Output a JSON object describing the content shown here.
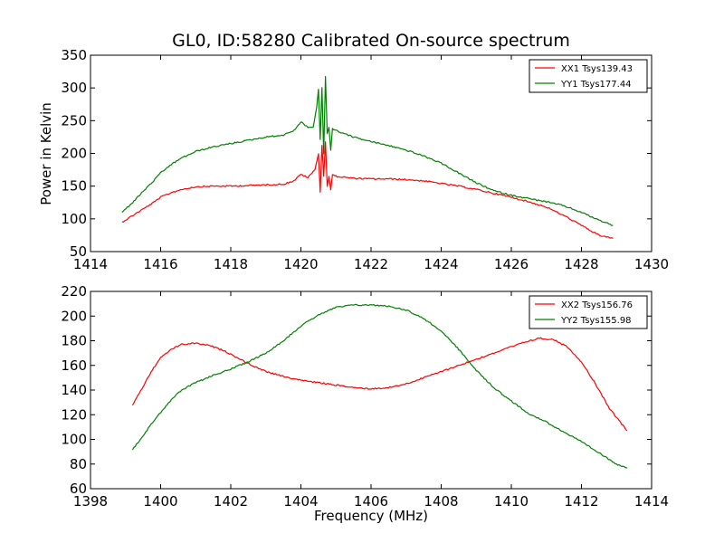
{
  "figure": {
    "title": "GL0, ID:58280 Calibrated On-source spectrum",
    "ylabel": "Power in Kelvin",
    "xlabel": "Frequency (MHz)"
  },
  "chart_data": [
    {
      "type": "line",
      "title": "GL0, ID:58280 Calibrated On-source spectrum",
      "ylabel": "Power in Kelvin",
      "xlim": [
        1414,
        1430
      ],
      "ylim": [
        50,
        350
      ],
      "xticks": [
        1414,
        1416,
        1418,
        1420,
        1422,
        1424,
        1426,
        1428,
        1430
      ],
      "yticks": [
        50,
        100,
        150,
        200,
        250,
        300,
        350
      ],
      "grid": false,
      "legend_position": "top-right",
      "series": [
        {
          "name": "XX1 Tsys139.43",
          "color": "#ff0000",
          "x": [
            1414.9,
            1415.2,
            1415.5,
            1415.8,
            1416.0,
            1416.3,
            1416.6,
            1417.0,
            1417.5,
            1418.0,
            1418.5,
            1419.0,
            1419.5,
            1419.8,
            1420.0,
            1420.2,
            1420.4,
            1420.5,
            1420.55,
            1420.6,
            1420.65,
            1420.7,
            1420.75,
            1420.8,
            1420.85,
            1420.9,
            1421.0,
            1421.5,
            1422.0,
            1422.5,
            1423.0,
            1423.5,
            1424.0,
            1424.5,
            1425.0,
            1425.5,
            1426.0,
            1426.5,
            1427.0,
            1427.5,
            1428.0,
            1428.5,
            1428.9
          ],
          "values": [
            95,
            105,
            115,
            125,
            133,
            140,
            145,
            149,
            150,
            150,
            151,
            152,
            153,
            158,
            168,
            163,
            175,
            200,
            140,
            213,
            165,
            218,
            150,
            165,
            145,
            167,
            165,
            162,
            161,
            161,
            160,
            158,
            154,
            150,
            145,
            139,
            133,
            126,
            118,
            105,
            90,
            75,
            70
          ]
        },
        {
          "name": "YY1 Tsys177.44",
          "color": "#008000",
          "x": [
            1414.9,
            1415.2,
            1415.5,
            1415.8,
            1416.0,
            1416.3,
            1416.6,
            1417.0,
            1417.5,
            1418.0,
            1418.5,
            1419.0,
            1419.5,
            1419.8,
            1420.0,
            1420.2,
            1420.35,
            1420.45,
            1420.5,
            1420.55,
            1420.6,
            1420.65,
            1420.7,
            1420.75,
            1420.8,
            1420.85,
            1420.9,
            1421.0,
            1421.5,
            1422.0,
            1422.5,
            1423.0,
            1423.5,
            1424.0,
            1424.5,
            1425.0,
            1425.5,
            1426.0,
            1426.5,
            1427.0,
            1427.5,
            1428.0,
            1428.5,
            1428.9
          ],
          "values": [
            110,
            125,
            142,
            158,
            170,
            183,
            193,
            203,
            210,
            215,
            220,
            225,
            228,
            235,
            248,
            240,
            240,
            270,
            298,
            220,
            300,
            200,
            318,
            230,
            240,
            205,
            238,
            235,
            225,
            218,
            212,
            205,
            196,
            185,
            170,
            155,
            143,
            136,
            131,
            126,
            120,
            110,
            98,
            90
          ]
        }
      ]
    },
    {
      "type": "line",
      "xlabel": "Frequency (MHz)",
      "xlim": [
        1398,
        1414
      ],
      "ylim": [
        60,
        220
      ],
      "xticks": [
        1398,
        1400,
        1402,
        1404,
        1406,
        1408,
        1410,
        1412,
        1414
      ],
      "yticks": [
        60,
        80,
        100,
        120,
        140,
        160,
        180,
        200,
        220
      ],
      "grid": false,
      "legend_position": "top-right",
      "series": [
        {
          "name": "XX2 Tsys156.76",
          "color": "#ff0000",
          "x": [
            1399.2,
            1399.5,
            1399.8,
            1400.0,
            1400.3,
            1400.6,
            1401.0,
            1401.4,
            1401.8,
            1402.2,
            1402.6,
            1403.0,
            1403.5,
            1404.0,
            1404.5,
            1405.0,
            1405.5,
            1406.0,
            1406.5,
            1407.0,
            1407.5,
            1408.0,
            1408.5,
            1409.0,
            1409.5,
            1410.0,
            1410.4,
            1410.8,
            1411.2,
            1411.6,
            1412.0,
            1412.4,
            1412.8,
            1413.3
          ],
          "values": [
            128,
            143,
            158,
            166,
            173,
            177,
            178,
            176,
            172,
            166,
            160,
            155,
            151,
            148,
            146,
            144,
            142,
            141,
            142,
            145,
            150,
            155,
            160,
            165,
            170,
            175,
            179,
            182,
            181,
            175,
            163,
            145,
            125,
            107
          ]
        },
        {
          "name": "YY2 Tsys155.98",
          "color": "#008000",
          "x": [
            1399.2,
            1399.5,
            1399.8,
            1400.0,
            1400.3,
            1400.6,
            1401.0,
            1401.5,
            1402.0,
            1402.5,
            1403.0,
            1403.5,
            1404.0,
            1404.5,
            1405.0,
            1405.5,
            1406.0,
            1406.5,
            1407.0,
            1407.5,
            1408.0,
            1408.5,
            1409.0,
            1409.5,
            1410.0,
            1410.5,
            1411.0,
            1411.5,
            1412.0,
            1412.5,
            1413.0,
            1413.3
          ],
          "values": [
            92,
            103,
            115,
            122,
            132,
            140,
            146,
            152,
            157,
            163,
            170,
            180,
            192,
            201,
            207,
            209,
            209,
            208,
            205,
            198,
            188,
            173,
            156,
            142,
            131,
            121,
            114,
            106,
            98,
            89,
            80,
            77
          ]
        }
      ]
    }
  ]
}
